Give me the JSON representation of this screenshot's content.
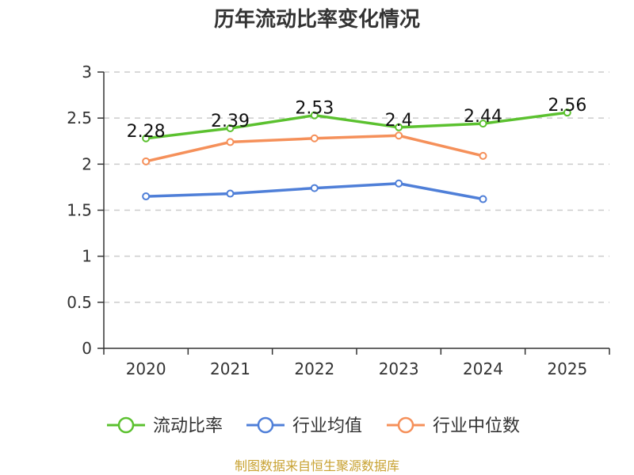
{
  "chart_data": {
    "type": "line",
    "title": "历年流动比率变化情况",
    "categories": [
      "2020",
      "2021",
      "2022",
      "2023",
      "2024",
      "2025"
    ],
    "ylim": [
      0,
      3
    ],
    "yticks": [
      "0",
      "0.5",
      "1",
      "1.5",
      "2",
      "2.5",
      "3"
    ],
    "ytick_values": [
      0,
      0.5,
      1,
      1.5,
      2,
      2.5,
      3
    ],
    "grid": true,
    "legend_position": "bottom",
    "series": [
      {
        "name": "流动比率",
        "color": "#5bc12f",
        "values": [
          2.28,
          2.39,
          2.53,
          2.4,
          2.44,
          2.56
        ],
        "labels": [
          "2.28",
          "2.39",
          "2.53",
          "2.4",
          "2.44",
          "2.56"
        ]
      },
      {
        "name": "行业均值",
        "color": "#4f7fd8",
        "values": [
          1.65,
          1.68,
          1.74,
          1.79,
          1.62,
          null
        ]
      },
      {
        "name": "行业中位数",
        "color": "#f5905a",
        "values": [
          2.03,
          2.24,
          2.28,
          2.31,
          2.09,
          null
        ]
      }
    ],
    "source": "制图数据来自恒生聚源数据库"
  }
}
